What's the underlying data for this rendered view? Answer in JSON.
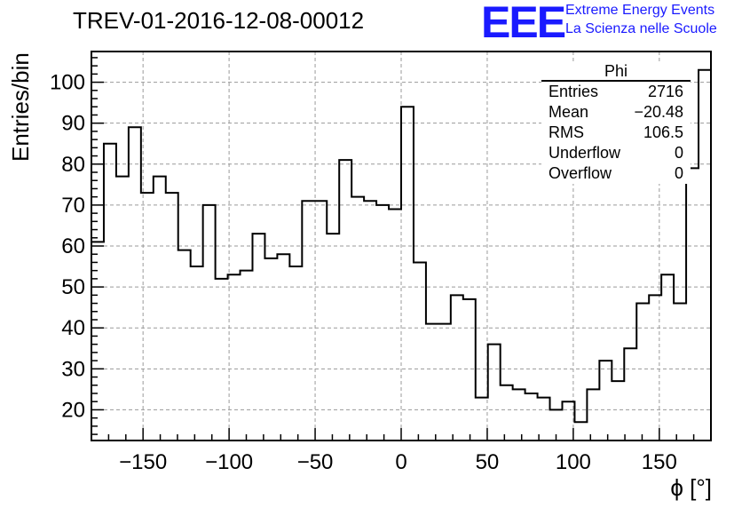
{
  "header": {
    "title": "TREV-01-2016-12-08-00012",
    "logo": "EEE",
    "logo_line1": "Extreme Energy Events",
    "logo_line2": "La Scienza nelle Scuole"
  },
  "stats_box": {
    "title": "Phi",
    "rows": [
      {
        "label": "Entries",
        "value": "2716"
      },
      {
        "label": "Mean",
        "value": "−20.48"
      },
      {
        "label": "RMS",
        "value": "106.5"
      },
      {
        "label": "Underflow",
        "value": "0"
      },
      {
        "label": "Overflow",
        "value": "0"
      }
    ]
  },
  "chart_data": {
    "type": "bar",
    "histogram": true,
    "xlabel": "ϕ [°]",
    "ylabel": "Entries/bin",
    "xlim": [
      -180,
      180
    ],
    "ylim": [
      12.5,
      107.5
    ],
    "xticks": [
      -150,
      -100,
      -50,
      0,
      50,
      100,
      150
    ],
    "xtick_labels": [
      "−150",
      "−100",
      "−50",
      "0",
      "50",
      "100",
      "150"
    ],
    "yticks": [
      20,
      30,
      40,
      50,
      60,
      70,
      80,
      90,
      100
    ],
    "grid": true,
    "bin_width": 7.2,
    "bin_edges_start": -180,
    "values": [
      61,
      85,
      77,
      89,
      73,
      77,
      73,
      59,
      55,
      70,
      52,
      53,
      54,
      63,
      57,
      58,
      55,
      71,
      71,
      63,
      81,
      72,
      71,
      70,
      69,
      94,
      56,
      41,
      41,
      48,
      47,
      23,
      36,
      26,
      25,
      24,
      23,
      20,
      22,
      17,
      25,
      32,
      27,
      35,
      46,
      48,
      53,
      46,
      79,
      103
    ]
  }
}
